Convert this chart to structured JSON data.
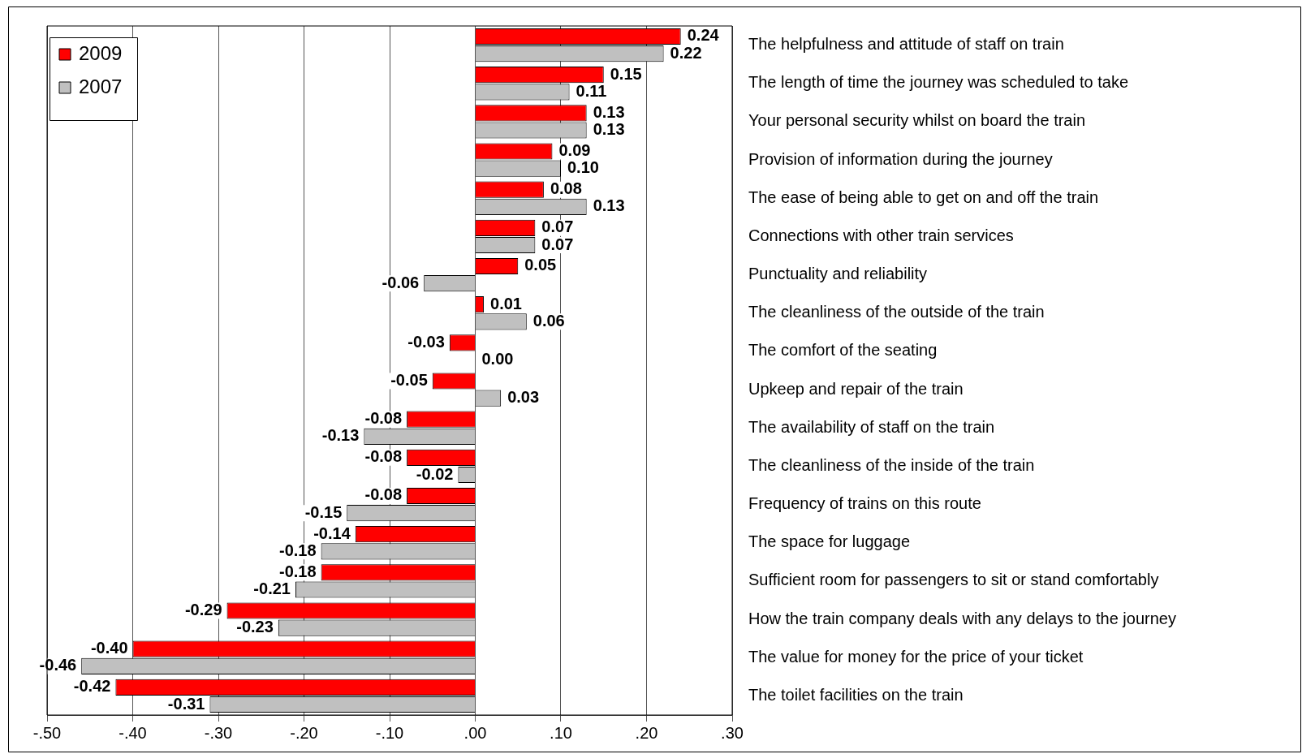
{
  "chart_data": {
    "type": "bar",
    "orientation": "horizontal",
    "categories": [
      "The helpfulness and attitude of staff on train",
      "The length of time the journey was scheduled to take",
      "Your personal security whilst on board the train",
      "Provision of information during the journey",
      "The ease of being able to get on and off the train",
      "Connections with other train services",
      "Punctuality and reliability",
      "The cleanliness of the outside of the train",
      "The comfort of the seating",
      "Upkeep and repair of the train",
      "The availability of staff on the train",
      "The cleanliness of the inside of the train",
      "Frequency of trains on this route",
      "The space for luggage",
      "Sufficient room for passengers to sit or stand comfortably",
      "How the train company deals with any delays to the journey",
      "The value for money for the price of your ticket",
      "The toilet facilities on the train"
    ],
    "series": [
      {
        "name": "2009",
        "color": "#ff0000",
        "values": [
          0.24,
          0.15,
          0.13,
          0.09,
          0.08,
          0.07,
          0.05,
          0.01,
          -0.03,
          -0.05,
          -0.08,
          -0.08,
          -0.08,
          -0.14,
          -0.18,
          -0.29,
          -0.4,
          -0.42
        ],
        "value_labels": [
          "0.24",
          "0.15",
          "0.13",
          "0.09",
          "0.08",
          "0.07",
          "0.05",
          "0.01",
          "-0.03",
          "-0.05",
          "-0.08",
          "-0.08",
          "-0.08",
          "-0.14",
          "-0.18",
          "-0.29",
          "-0.40",
          "-0.42"
        ]
      },
      {
        "name": "2007",
        "color": "#c0c0c0",
        "values": [
          0.22,
          0.11,
          0.13,
          0.1,
          0.13,
          0.07,
          -0.06,
          0.06,
          0.0,
          0.03,
          -0.13,
          -0.02,
          -0.15,
          -0.18,
          -0.21,
          -0.23,
          -0.46,
          -0.31
        ],
        "value_labels": [
          "0.22",
          "0.11",
          "0.13",
          "0.10",
          "0.13",
          "0.07",
          "-0.06",
          "0.06",
          "0.00",
          "0.03",
          "-0.13",
          "-0.02",
          "-0.15",
          "-0.18",
          "-0.21",
          "-0.23",
          "-0.46",
          "-0.31"
        ]
      }
    ],
    "xlim": [
      -0.5,
      0.3
    ],
    "xticks": [
      {
        "value": -0.5,
        "label": "-.50"
      },
      {
        "value": -0.4,
        "label": "-.40"
      },
      {
        "value": -0.3,
        "label": "-.30"
      },
      {
        "value": -0.2,
        "label": "-.20"
      },
      {
        "value": -0.1,
        "label": "-.10"
      },
      {
        "value": 0,
        "label": ".00"
      },
      {
        "value": 0.1,
        "label": ".10"
      },
      {
        "value": 0.2,
        "label": ".20"
      },
      {
        "value": 0.3,
        "label": ".30"
      }
    ],
    "grid": "x",
    "legend": "top left"
  }
}
